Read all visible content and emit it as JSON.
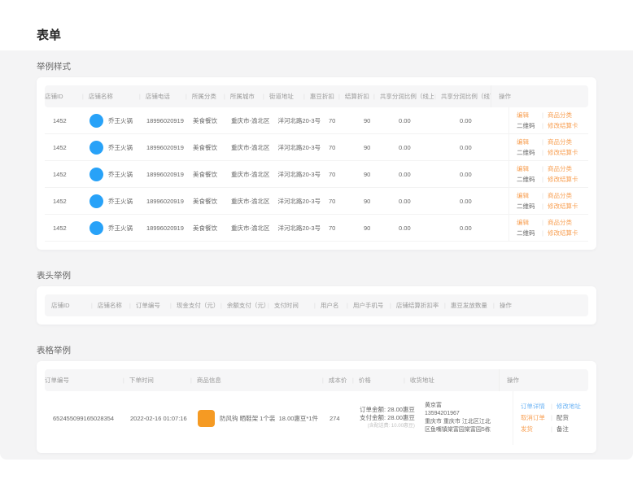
{
  "page": {
    "title": "表单"
  },
  "sections": {
    "style_example": {
      "label": "举例样式"
    },
    "header_example": {
      "label": "表头举例"
    },
    "table_example": {
      "label": "表格举例"
    }
  },
  "colors": {
    "accent_orange": "#f8a054",
    "accent_blue": "#6db4f5",
    "avatar_blue": "#28a2f8",
    "product_orange": "#f59a23",
    "page_gray": "#f4f4f5",
    "header_bar": "#f6f6f7"
  },
  "style_table": {
    "headers": [
      "店铺ID",
      "店铺名称",
      "店铺电话",
      "所属分类",
      "所属城市",
      "街道地址",
      "惠豆折扣",
      "结算折扣",
      "共享分润比例（线上）",
      "共享分润比例（线下）",
      "操作"
    ],
    "rows": [
      {
        "shop_id": "1452",
        "shop_name": "乔王火锅",
        "phone": "18996020919",
        "category": "美食餐饮",
        "city": "重庆市-渝北区",
        "address": "洋河北路20-3号",
        "huidou_discount": "70",
        "settle_discount": "90",
        "share_online": "0.00",
        "share_offline": "0.00"
      },
      {
        "shop_id": "1452",
        "shop_name": "乔王火锅",
        "phone": "18996020919",
        "category": "美食餐饮",
        "city": "重庆市-渝北区",
        "address": "洋河北路20-3号",
        "huidou_discount": "70",
        "settle_discount": "90",
        "share_online": "0.00",
        "share_offline": "0.00"
      },
      {
        "shop_id": "1452",
        "shop_name": "乔王火锅",
        "phone": "18996020919",
        "category": "美食餐饮",
        "city": "重庆市-渝北区",
        "address": "洋河北路20-3号",
        "huidou_discount": "70",
        "settle_discount": "90",
        "share_online": "0.00",
        "share_offline": "0.00"
      },
      {
        "shop_id": "1452",
        "shop_name": "乔王火锅",
        "phone": "18996020919",
        "category": "美食餐饮",
        "city": "重庆市-渝北区",
        "address": "洋河北路20-3号",
        "huidou_discount": "70",
        "settle_discount": "90",
        "share_online": "0.00",
        "share_offline": "0.00"
      },
      {
        "shop_id": "1452",
        "shop_name": "乔王火锅",
        "phone": "18996020919",
        "category": "美食餐饮",
        "city": "重庆市-渝北区",
        "address": "洋河北路20-3号",
        "huidou_discount": "70",
        "settle_discount": "90",
        "share_online": "0.00",
        "share_offline": "0.00"
      }
    ],
    "actions": {
      "edit": "编辑",
      "product_category": "商品分类",
      "qrcode": "二维码",
      "modify_settle_card": "修改结算卡"
    }
  },
  "header_table": {
    "headers": [
      "店铺ID",
      "店铺名称",
      "订单编号",
      "现金支付（元）",
      "余额支付（元）",
      "支付时间",
      "用户名",
      "用户手机号",
      "店铺结算折扣率",
      "惠豆发放数量",
      "操作"
    ]
  },
  "order_table": {
    "headers": [
      "订单编号",
      "下单时间",
      "商品信息",
      "成本价",
      "价格",
      "收货地址",
      "操作"
    ],
    "row": {
      "order_no": "652455099165028354",
      "order_time": "2022-02-16 01:07:16",
      "product": {
        "name": "防风钩 晒鞋架 1个装",
        "price_qty": "18.00惠豆*1件"
      },
      "cost": "274",
      "price": {
        "order_amount": "订单金额: 28.00惠豆",
        "pay_amount": "支付金额: 28.00惠豆",
        "delivery_fee": "(含配送费: 10.00惠豆)"
      },
      "address": {
        "name": "黄京富",
        "phone": "13594201967",
        "line1": "重庆市 重庆市 江北区江北",
        "line2": "区鱼嘴镇棠富园棠富园5栋"
      },
      "actions": {
        "detail": "订单详情",
        "modify_address": "修改地址",
        "cancel": "取消订单",
        "allocate": "配货",
        "ship": "发货",
        "remark": "备注"
      }
    }
  }
}
